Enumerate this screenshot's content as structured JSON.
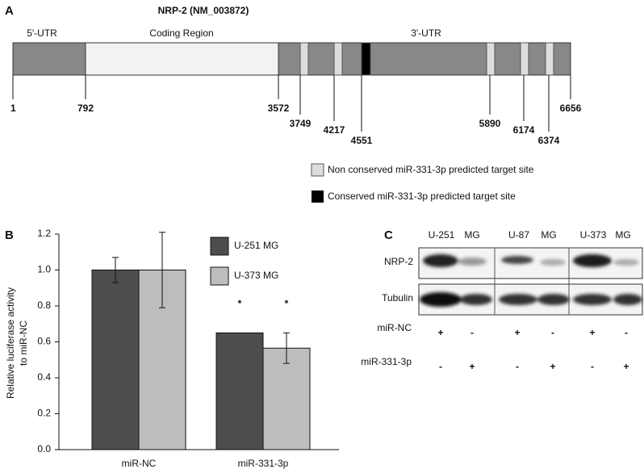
{
  "panel_a": {
    "label": "A",
    "title": "NRP-2 (NM_003872)",
    "regions": [
      "5'-UTR",
      "Coding Region",
      "3'-UTR"
    ],
    "positions": [
      1,
      792,
      3572,
      3749,
      4217,
      4551,
      5890,
      6174,
      6374,
      6656
    ],
    "legend": [
      "Non conserved miR-331-3p predicted target site",
      "Conserved miR-331-3p predicted target site"
    ]
  },
  "chart_data": {
    "type": "bar",
    "label": "B",
    "ylabel": [
      "Relative luciferase activity",
      "to miR-NC"
    ],
    "categories": [
      "miR-NC",
      "miR-331-3p"
    ],
    "series": [
      {
        "name": "U-251 MG",
        "color": "#4d4d4d",
        "values": [
          1.0,
          0.65
        ],
        "errors": [
          0.07,
          null
        ]
      },
      {
        "name": "U-373 MG",
        "color": "#bdbdbd",
        "values": [
          1.0,
          0.565
        ],
        "errors": [
          0.21,
          0.085
        ]
      }
    ],
    "annotations": [
      "*",
      "*"
    ],
    "ylim": [
      0,
      1.2
    ],
    "yticks": [
      {
        "value": 0,
        "label": "0.0"
      },
      0.2,
      0.4,
      0.6,
      0.8,
      {
        "value": 1,
        "label": "1.0"
      },
      1.2
    ]
  },
  "panel_c": {
    "label": "C",
    "cell_lines": [
      [
        "U-251",
        "MG"
      ],
      [
        "U-87",
        "MG"
      ],
      [
        "U-373",
        "MG"
      ]
    ],
    "blots": [
      "NRP-2",
      "Tubulin"
    ],
    "treatments": [
      {
        "name": "miR-NC",
        "signs": [
          "+",
          "-",
          "+",
          "-",
          "+",
          "-"
        ]
      },
      {
        "name": "miR-331-3p",
        "signs": [
          "-",
          "+",
          "-",
          "+",
          "-",
          "+"
        ]
      }
    ]
  }
}
